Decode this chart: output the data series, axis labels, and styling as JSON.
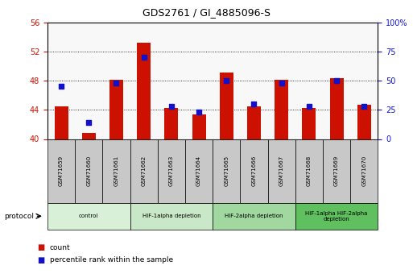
{
  "title": "GDS2761 / GI_4885096-S",
  "samples": [
    "GSM71659",
    "GSM71660",
    "GSM71661",
    "GSM71662",
    "GSM71663",
    "GSM71664",
    "GSM71665",
    "GSM71666",
    "GSM71667",
    "GSM71668",
    "GSM71669",
    "GSM71670"
  ],
  "counts": [
    44.5,
    40.8,
    48.1,
    53.2,
    44.3,
    43.4,
    49.1,
    44.5,
    48.1,
    44.3,
    48.3,
    44.7
  ],
  "percentiles": [
    45,
    14,
    48,
    70,
    28,
    23,
    50,
    30,
    48,
    28,
    50,
    28
  ],
  "ylim_left": [
    40,
    56
  ],
  "ylim_right": [
    0,
    100
  ],
  "yticks_left": [
    40,
    44,
    48,
    52,
    56
  ],
  "yticks_right": [
    0,
    25,
    50,
    75,
    100
  ],
  "bar_color": "#cc1100",
  "dot_color": "#1111cc",
  "bar_width": 0.5,
  "dot_size": 25,
  "groups": [
    {
      "label": "control",
      "start": 0,
      "end": 3,
      "color": "#d8f0d8"
    },
    {
      "label": "HIF-1alpha depletion",
      "start": 3,
      "end": 6,
      "color": "#c8e8c8"
    },
    {
      "label": "HIF-2alpha depletion",
      "start": 6,
      "end": 9,
      "color": "#a0d8a0"
    },
    {
      "label": "HIF-1alpha HIF-2alpha\ndepletion",
      "start": 9,
      "end": 12,
      "color": "#60c060"
    }
  ],
  "legend_count_label": "count",
  "legend_pct_label": "percentile rank within the sample",
  "protocol_label": "protocol",
  "sample_box_color": "#c8c8c8",
  "plot_bg": "#f8f8f8"
}
